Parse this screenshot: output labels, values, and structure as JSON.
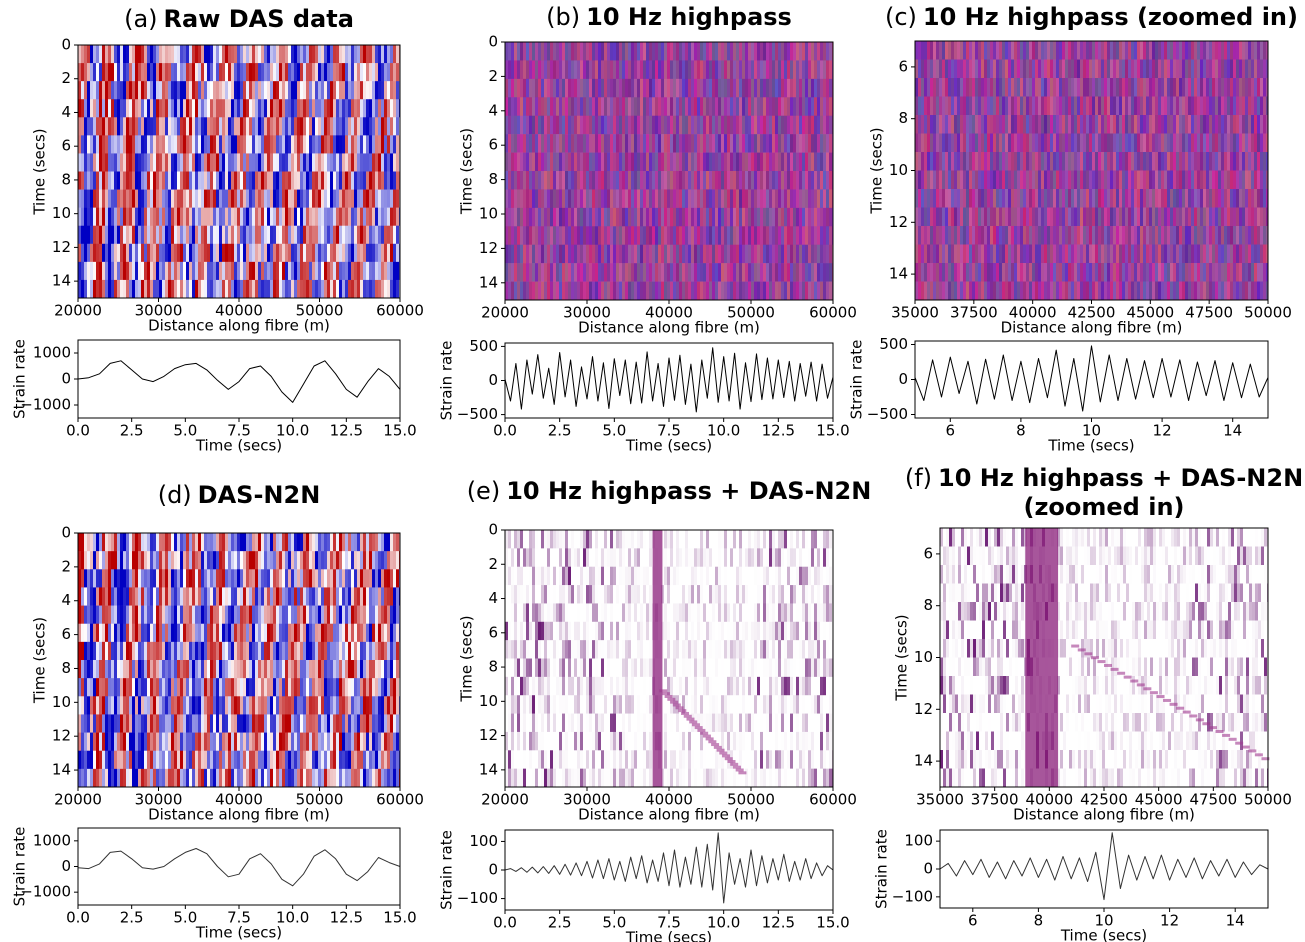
{
  "chart_data": [
    {
      "type": "heatmap",
      "panel": "(a)",
      "title": [
        "Raw DAS data"
      ],
      "colormap": "seismic",
      "xlabel": "Distance along fibre (m)",
      "ylabel": "Time (secs)",
      "xlim": [
        20000,
        60000
      ],
      "ylim": [
        0,
        15
      ],
      "y_inverted": true,
      "xticks": [
        20000,
        30000,
        40000,
        50000,
        60000
      ],
      "yticks": [
        0,
        2,
        4,
        6,
        8,
        10,
        12,
        14
      ]
    },
    {
      "type": "line",
      "xlabel": "Time (secs)",
      "ylabel": "Strain rate",
      "xlim": [
        0,
        15
      ],
      "ylim": [
        -1500,
        1500
      ],
      "color": "#000000",
      "xticks": [
        {
          "value": 0,
          "label": "0.0"
        },
        2.5,
        {
          "value": 5,
          "label": "5.0"
        },
        7.5,
        {
          "value": 10,
          "label": "10.0"
        },
        12.5,
        {
          "value": 15,
          "label": "15.0"
        }
      ],
      "yticks": [
        {
          "value": -1000,
          "label": "−1000"
        },
        0,
        1000
      ],
      "x": [
        0,
        0.5,
        1,
        1.5,
        2,
        2.5,
        3,
        3.5,
        4,
        4.5,
        5,
        5.5,
        6,
        6.5,
        7,
        7.5,
        8,
        8.5,
        9,
        9.5,
        10,
        10.5,
        11,
        11.5,
        12,
        12.5,
        13,
        13.5,
        14,
        14.5,
        15
      ],
      "values": [
        0,
        50,
        200,
        600,
        700,
        350,
        0,
        -100,
        100,
        400,
        550,
        600,
        350,
        -50,
        -400,
        -100,
        400,
        500,
        100,
        -500,
        -900,
        -200,
        500,
        700,
        200,
        -400,
        -700,
        -100,
        400,
        100,
        -400
      ]
    },
    {
      "type": "heatmap",
      "panel": "(b)",
      "title": [
        "10 Hz highpass"
      ],
      "colormap": "purple",
      "xlabel": "Distance along fibre (m)",
      "ylabel": "Time (secs)",
      "xlim": [
        20000,
        60000
      ],
      "ylim": [
        0,
        15
      ],
      "y_inverted": true,
      "xticks": [
        20000,
        30000,
        40000,
        50000,
        60000
      ],
      "yticks": [
        0,
        2,
        4,
        6,
        8,
        10,
        12,
        14
      ]
    },
    {
      "type": "line",
      "xlabel": "Time (secs)",
      "ylabel": "Strain rate",
      "xlim": [
        0,
        15
      ],
      "ylim": [
        -550,
        550
      ],
      "color": "#000000",
      "xticks": [
        {
          "value": 0,
          "label": "0.0"
        },
        2.5,
        {
          "value": 5,
          "label": "5.0"
        },
        7.5,
        {
          "value": 10,
          "label": "10.0"
        },
        12.5,
        {
          "value": 15,
          "label": "15.0"
        }
      ],
      "yticks": [
        {
          "value": -500,
          "label": "−500"
        },
        0,
        500
      ],
      "x": [
        0,
        0.25,
        0.5,
        0.75,
        1,
        1.25,
        1.5,
        1.75,
        2,
        2.25,
        2.5,
        2.75,
        3,
        3.25,
        3.5,
        3.75,
        4,
        4.25,
        4.5,
        4.75,
        5,
        5.25,
        5.5,
        5.75,
        6,
        6.25,
        6.5,
        6.75,
        7,
        7.25,
        7.5,
        7.75,
        8,
        8.25,
        8.5,
        8.75,
        9,
        9.25,
        9.5,
        9.75,
        10,
        10.25,
        10.5,
        10.75,
        11,
        11.25,
        11.5,
        11.75,
        12,
        12.25,
        12.5,
        12.75,
        13,
        13.25,
        13.5,
        13.75,
        14,
        14.25,
        14.5,
        14.75,
        15
      ],
      "values": [
        20,
        -300,
        250,
        -420,
        300,
        -200,
        380,
        -260,
        180,
        -350,
        410,
        -240,
        300,
        -380,
        200,
        -270,
        350,
        -300,
        260,
        -410,
        320,
        -220,
        300,
        -340,
        270,
        -330,
        420,
        -300,
        250,
        -380,
        330,
        -290,
        370,
        -350,
        240,
        -460,
        300,
        -260,
        480,
        -320,
        350,
        -300,
        400,
        -420,
        260,
        -310,
        390,
        -280,
        330,
        -270,
        300,
        -250,
        280,
        -300,
        250,
        -230,
        270,
        -300,
        240,
        -260,
        50
      ]
    },
    {
      "type": "heatmap",
      "panel": "(c)",
      "title": [
        "10 Hz highpass (zoomed in)"
      ],
      "colormap": "purple",
      "xlabel": "Distance along fibre (m)",
      "ylabel": "Time (secs)",
      "xlim": [
        35000,
        50000
      ],
      "ylim": [
        5,
        15
      ],
      "y_inverted": true,
      "xticks": [
        35000,
        37500,
        40000,
        42500,
        45000,
        47500,
        50000
      ],
      "yticks": [
        6,
        8,
        10,
        12,
        14
      ]
    },
    {
      "type": "line",
      "xlabel": "Time (secs)",
      "ylabel": "Strain rate",
      "xlim": [
        5,
        15
      ],
      "ylim": [
        -550,
        550
      ],
      "color": "#000000",
      "xticks": [
        6,
        8,
        10,
        12,
        14
      ],
      "yticks": [
        {
          "value": -500,
          "label": "−500"
        },
        0,
        500
      ],
      "x": [
        5,
        5.25,
        5.5,
        5.75,
        6,
        6.25,
        6.5,
        6.75,
        7,
        7.25,
        7.5,
        7.75,
        8,
        8.25,
        8.5,
        8.75,
        9,
        9.25,
        9.5,
        9.75,
        10,
        10.25,
        10.5,
        10.75,
        11,
        11.25,
        11.5,
        11.75,
        12,
        12.25,
        12.5,
        12.75,
        13,
        13.25,
        13.5,
        13.75,
        14,
        14.25,
        14.5,
        14.75,
        15
      ],
      "values": [
        30,
        -300,
        280,
        -250,
        320,
        -200,
        260,
        -350,
        290,
        -280,
        350,
        -300,
        260,
        -330,
        300,
        -260,
        420,
        -380,
        300,
        -450,
        480,
        -320,
        350,
        -300,
        300,
        -280,
        270,
        -260,
        300,
        -250,
        280,
        -300,
        250,
        -230,
        270,
        -300,
        240,
        -260,
        220,
        -250,
        30
      ]
    },
    {
      "type": "heatmap",
      "panel": "(d)",
      "title": [
        "DAS-N2N"
      ],
      "colormap": "seismic",
      "xlabel": "Distance along fibre (m)",
      "ylabel": "Time (secs)",
      "xlim": [
        20000,
        60000
      ],
      "ylim": [
        0,
        15
      ],
      "y_inverted": true,
      "xticks": [
        20000,
        30000,
        40000,
        50000,
        60000
      ],
      "yticks": [
        0,
        2,
        4,
        6,
        8,
        10,
        12,
        14
      ]
    },
    {
      "type": "line",
      "xlabel": "Time (secs)",
      "ylabel": "Strain rate",
      "xlim": [
        0,
        15
      ],
      "ylim": [
        -1500,
        1500
      ],
      "color": "#333333",
      "xticks": [
        {
          "value": 0,
          "label": "0.0"
        },
        2.5,
        {
          "value": 5,
          "label": "5.0"
        },
        7.5,
        {
          "value": 10,
          "label": "10.0"
        },
        12.5,
        {
          "value": 15,
          "label": "15.0"
        }
      ],
      "yticks": [
        {
          "value": -1000,
          "label": "−1000"
        },
        0,
        1000
      ],
      "x": [
        0,
        0.5,
        1,
        1.5,
        2,
        2.5,
        3,
        3.5,
        4,
        4.5,
        5,
        5.5,
        6,
        6.5,
        7,
        7.5,
        8,
        8.5,
        9,
        9.5,
        10,
        10.5,
        11,
        11.5,
        12,
        12.5,
        13,
        13.5,
        14,
        14.5,
        15
      ],
      "values": [
        -50,
        -80,
        100,
        550,
        600,
        300,
        -50,
        -100,
        0,
        300,
        550,
        700,
        500,
        0,
        -400,
        -300,
        300,
        500,
        100,
        -500,
        -750,
        -300,
        400,
        650,
        300,
        -300,
        -550,
        -200,
        350,
        150,
        0
      ]
    },
    {
      "type": "heatmap",
      "panel": "(e)",
      "title": [
        "10 Hz highpass + DAS-N2N"
      ],
      "colormap": "white-purple",
      "xlabel": "Distance along fibre (m)",
      "ylabel": "Time (secs)",
      "xlim": [
        20000,
        60000
      ],
      "ylim": [
        0,
        15
      ],
      "y_inverted": true,
      "xticks": [
        20000,
        30000,
        40000,
        50000,
        60000
      ],
      "yticks": [
        0,
        2,
        4,
        6,
        8,
        10,
        12,
        14
      ]
    },
    {
      "type": "line",
      "xlabel": "Time (secs)",
      "ylabel": "Strain rate",
      "xlim": [
        0,
        15
      ],
      "ylim": [
        -140,
        140
      ],
      "color": "#333333",
      "xticks": [
        {
          "value": 0,
          "label": "0.0"
        },
        2.5,
        {
          "value": 5,
          "label": "5.0"
        },
        7.5,
        {
          "value": 10,
          "label": "10.0"
        },
        12.5,
        {
          "value": 15,
          "label": "15.0"
        }
      ],
      "yticks": [
        {
          "value": -100,
          "label": "−100"
        },
        0,
        100
      ],
      "x": [
        0,
        0.25,
        0.5,
        0.75,
        1,
        1.25,
        1.5,
        1.75,
        2,
        2.25,
        2.5,
        2.75,
        3,
        3.25,
        3.5,
        3.75,
        4,
        4.25,
        4.5,
        4.75,
        5,
        5.25,
        5.5,
        5.75,
        6,
        6.25,
        6.5,
        6.75,
        7,
        7.25,
        7.5,
        7.75,
        8,
        8.25,
        8.5,
        8.75,
        9,
        9.25,
        9.5,
        9.75,
        10,
        10.25,
        10.5,
        10.75,
        11,
        11.25,
        11.5,
        11.75,
        12,
        12.25,
        12.5,
        12.75,
        13,
        13.25,
        13.5,
        13.75,
        14,
        14.25,
        14.5,
        14.75,
        15
      ],
      "values": [
        0,
        5,
        -5,
        8,
        -8,
        10,
        -10,
        12,
        -12,
        15,
        -15,
        20,
        -18,
        25,
        -20,
        30,
        -28,
        35,
        -30,
        40,
        -35,
        30,
        -40,
        45,
        -30,
        50,
        -45,
        35,
        -40,
        60,
        -55,
        70,
        -60,
        45,
        -50,
        80,
        -60,
        90,
        -70,
        130,
        -115,
        60,
        -50,
        40,
        -60,
        70,
        -55,
        50,
        -45,
        40,
        -35,
        55,
        -40,
        30,
        -35,
        40,
        -30,
        25,
        -20,
        15,
        0
      ]
    },
    {
      "type": "heatmap",
      "panel": "(f)",
      "title": [
        "10 Hz highpass + DAS-N2N",
        "(zoomed in)"
      ],
      "colormap": "white-purple",
      "xlabel": "Distance along fibre (m)",
      "ylabel": "Time (secs)",
      "xlim": [
        35000,
        50000
      ],
      "ylim": [
        5,
        15
      ],
      "y_inverted": true,
      "xticks": [
        35000,
        37500,
        40000,
        42500,
        45000,
        47500,
        50000
      ],
      "yticks": [
        6,
        8,
        10,
        12,
        14
      ]
    },
    {
      "type": "line",
      "xlabel": "Time (secs)",
      "ylabel": "Strain rate",
      "xlim": [
        5,
        15
      ],
      "ylim": [
        -140,
        140
      ],
      "color": "#333333",
      "xticks": [
        6,
        8,
        10,
        12,
        14
      ],
      "yticks": [
        {
          "value": -100,
          "label": "−100"
        },
        0,
        100
      ],
      "x": [
        5,
        5.25,
        5.5,
        5.75,
        6,
        6.25,
        6.5,
        6.75,
        7,
        7.25,
        7.5,
        7.75,
        8,
        8.25,
        8.5,
        8.75,
        9,
        9.25,
        9.5,
        9.75,
        10,
        10.25,
        10.5,
        10.75,
        11,
        11.25,
        11.5,
        11.75,
        12,
        12.25,
        12.5,
        12.75,
        13,
        13.25,
        13.5,
        13.75,
        14,
        14.25,
        14.5,
        14.75,
        15
      ],
      "values": [
        0,
        20,
        -25,
        30,
        -20,
        35,
        -30,
        25,
        -35,
        30,
        -25,
        40,
        -30,
        35,
        -40,
        45,
        -35,
        40,
        -45,
        60,
        -110,
        130,
        -70,
        50,
        -40,
        45,
        -35,
        50,
        -40,
        35,
        -30,
        40,
        -35,
        30,
        -25,
        35,
        -30,
        25,
        -20,
        15,
        0
      ]
    }
  ]
}
